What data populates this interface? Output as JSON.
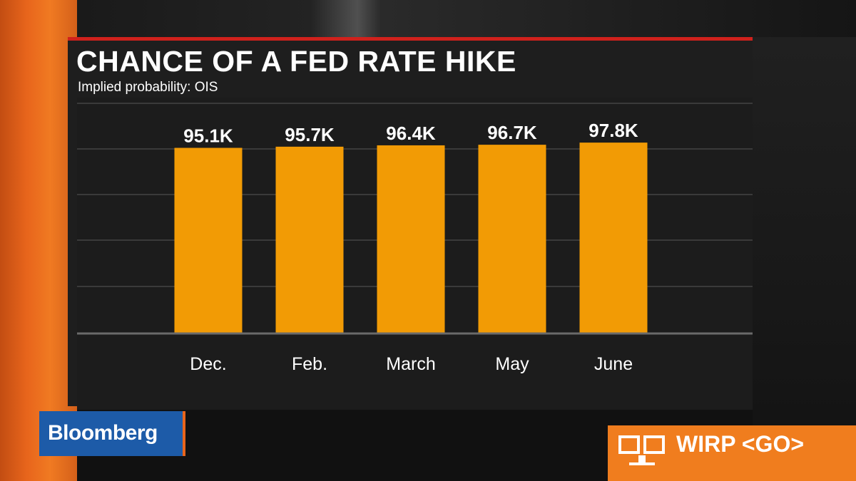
{
  "header": {
    "title": "CHANCE OF A FED RATE HIKE",
    "subtitle": "Implied probability: OIS"
  },
  "brand": {
    "logo_text": "Bloomberg",
    "logo_color": "#1d5ba8",
    "accent_color": "#e8651c"
  },
  "ticker": {
    "command": "WIRP <GO>",
    "icon": "terminal-monitors-icon",
    "color": "#f07d1e"
  },
  "colors": {
    "bar": "#f29b05",
    "title_rule": "#d0211c"
  },
  "chart_data": {
    "type": "bar",
    "title": "CHANCE OF A FED RATE HIKE",
    "subtitle": "Implied probability: OIS",
    "categories": [
      "Dec.",
      "Feb.",
      "March",
      "May",
      "June"
    ],
    "values": [
      95.1,
      95.7,
      96.4,
      96.7,
      97.8
    ],
    "value_labels": [
      "95.1K",
      "95.7K",
      "96.4K",
      "96.7K",
      "97.8K"
    ],
    "xlabel": "",
    "ylabel": "",
    "ylim": [
      0,
      118
    ],
    "grid": true,
    "legend": "none"
  }
}
